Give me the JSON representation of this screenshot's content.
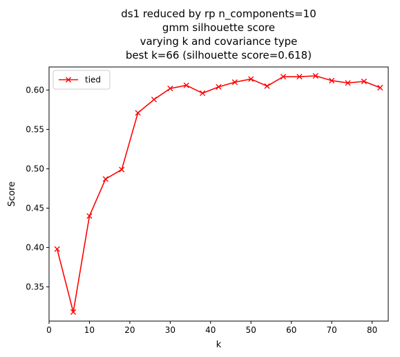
{
  "chart_data": {
    "type": "line",
    "title_lines": [
      "ds1 reduced by rp n_components=10",
      "gmm silhouette score",
      "varying k and covariance type",
      "best k=66 (silhouette score=0.618)"
    ],
    "xlabel": "k",
    "ylabel": "Score",
    "xlim": [
      -0.0,
      84.0
    ],
    "ylim": [
      0.3065,
      0.6293
    ],
    "xticks": [
      0,
      10,
      20,
      30,
      40,
      50,
      60,
      70,
      80
    ],
    "yticks": [
      0.35,
      0.4,
      0.45,
      0.5,
      0.55,
      0.6
    ],
    "ytick_labels": [
      "0.35",
      "0.40",
      "0.45",
      "0.50",
      "0.55",
      "0.60"
    ],
    "legend_position": "upper-left",
    "series": [
      {
        "name": "tied",
        "color": "#ff0000",
        "marker": "x",
        "x": [
          2,
          6,
          10,
          14,
          18,
          22,
          26,
          30,
          34,
          38,
          42,
          46,
          50,
          54,
          58,
          62,
          66,
          70,
          74,
          78,
          82
        ],
        "y": [
          0.398,
          0.318,
          0.44,
          0.487,
          0.499,
          0.571,
          0.588,
          0.602,
          0.606,
          0.596,
          0.604,
          0.61,
          0.614,
          0.605,
          0.617,
          0.617,
          0.618,
          0.612,
          0.609,
          0.611,
          0.603
        ]
      }
    ]
  }
}
